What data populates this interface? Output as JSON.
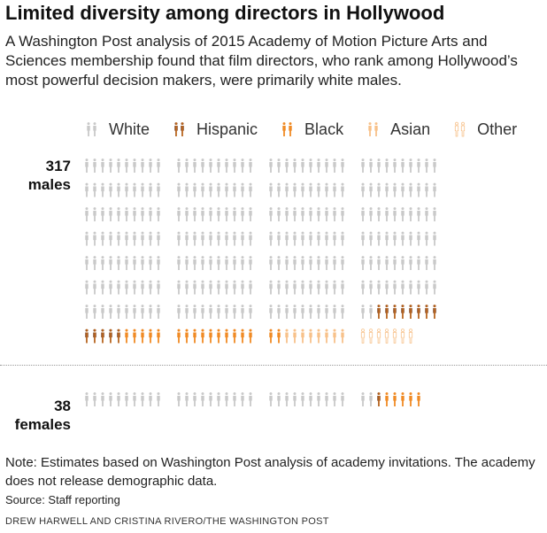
{
  "header": {
    "title": "Limited diversity among directors in Hollywood",
    "subtitle": "A Washington Post analysis of 2015 Academy of Motion Picture Arts and Sciences membership found that film directors, who rank among Hollywood’s most powerful decision makers, were primarily white males."
  },
  "legend": [
    {
      "label": "White",
      "color": "#c9c9c9",
      "style": "solid"
    },
    {
      "label": "Hispanic",
      "color": "#7a3d1b",
      "style": "striped"
    },
    {
      "label": "Black",
      "color": "#f08a24",
      "style": "solid"
    },
    {
      "label": "Asian",
      "color": "#f7c18a",
      "style": "solid"
    },
    {
      "label": "Other",
      "color": "#f7c18a",
      "style": "outline"
    }
  ],
  "chart_data": {
    "type": "table",
    "title": "Limited diversity among directors in Hollywood",
    "categories": [
      "White",
      "Hispanic",
      "Black",
      "Asian",
      "Other"
    ],
    "groups": [
      {
        "count": "317",
        "label": "males",
        "values": [
          272,
          13,
          17,
          8,
          7
        ]
      },
      {
        "count": "38",
        "label": "females",
        "values": [
          32,
          1,
          5,
          0,
          0
        ]
      }
    ]
  },
  "footer": {
    "note": "Note: Estimates based on Washington Post analysis of academy invitations. The academy does not release demographic data.",
    "source": "Source: Staff reporting",
    "credit": "DREW HARWELL AND CRISTINA RIVERO/THE WASHINGTON POST"
  }
}
